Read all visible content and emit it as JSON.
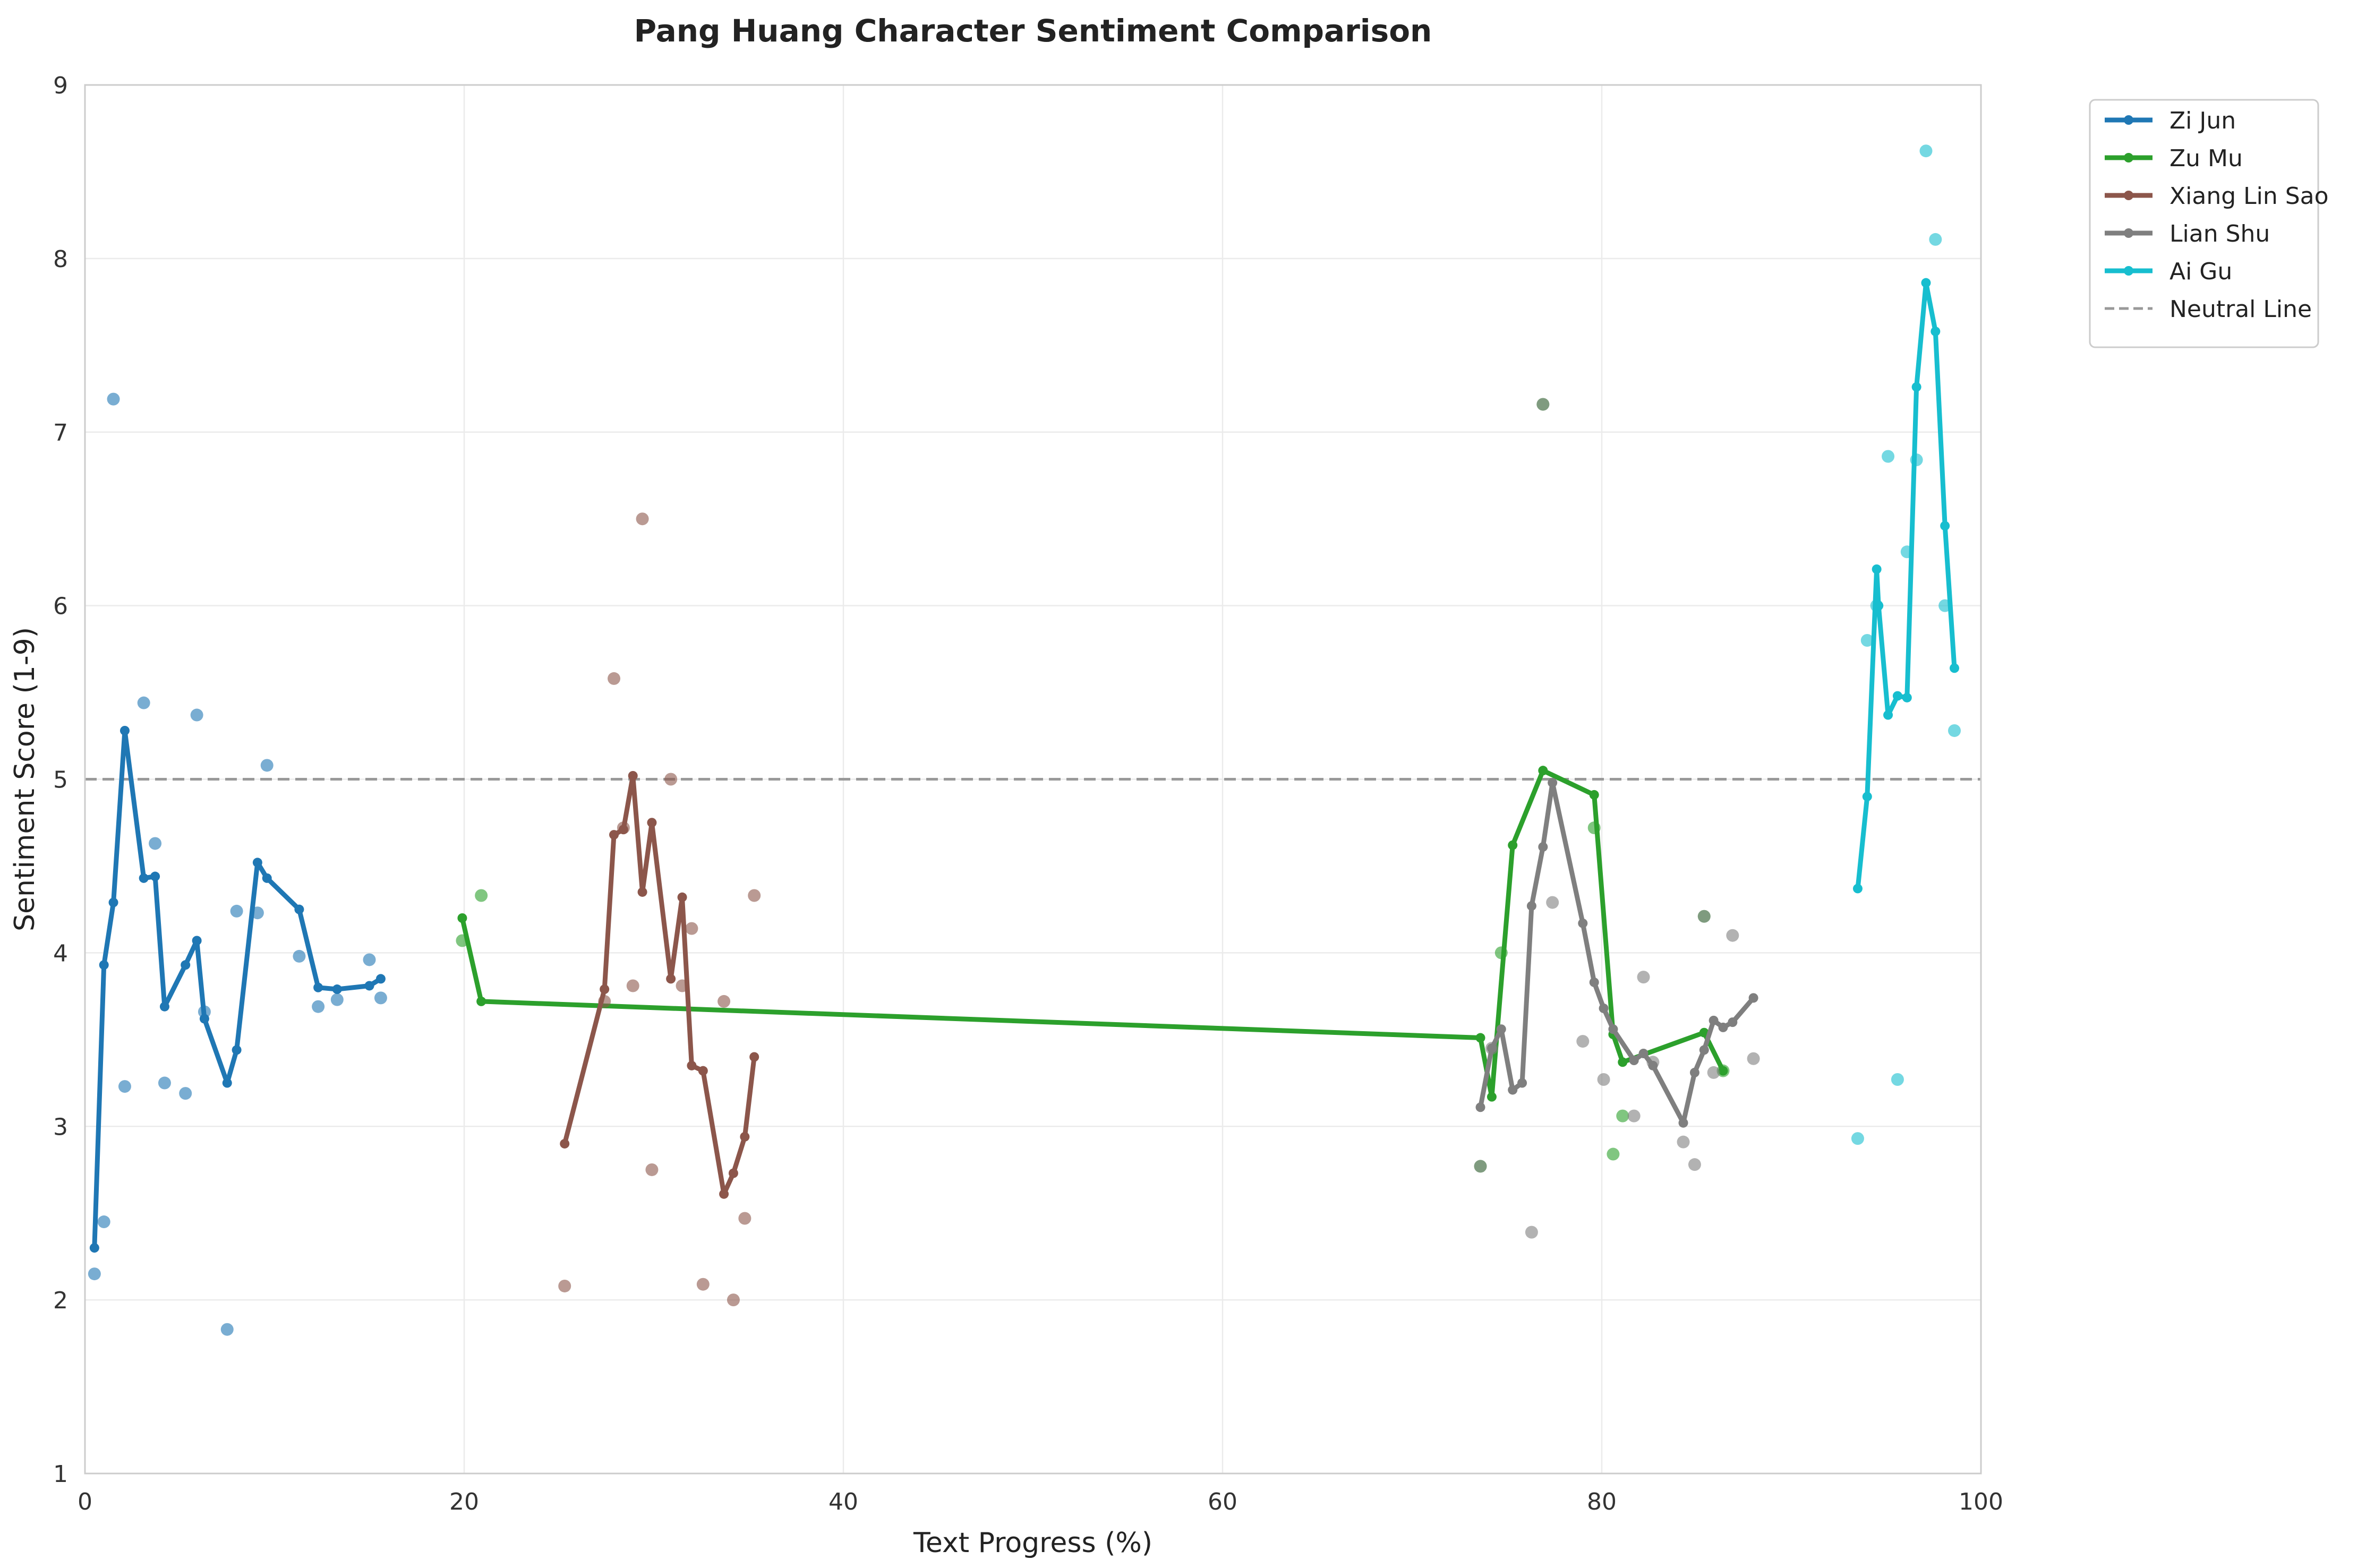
{
  "chart_data": {
    "type": "line",
    "title": "Pang Huang Character Sentiment Comparison",
    "xlabel": "Text Progress (%)",
    "ylabel": "Sentiment Score (1-9)",
    "xlim": [
      0,
      100
    ],
    "ylim": [
      1,
      9
    ],
    "x_ticks": [
      0,
      20,
      40,
      60,
      80,
      100
    ],
    "y_ticks": [
      1,
      2,
      3,
      4,
      5,
      6,
      7,
      8,
      9
    ],
    "grid": true,
    "legend_position": "outside top-right",
    "neutral_line": {
      "label": "Neutral Line",
      "y": 5,
      "color": "#999999",
      "style": "dashed"
    },
    "series": [
      {
        "name": "Zi Jun",
        "color": "#1f77b4",
        "line": [
          [
            0.5,
            2.3
          ],
          [
            1.0,
            3.93
          ],
          [
            1.5,
            4.29
          ],
          [
            2.1,
            5.28
          ],
          [
            3.1,
            4.43
          ],
          [
            3.7,
            4.44
          ],
          [
            4.2,
            3.69
          ],
          [
            5.3,
            3.93
          ],
          [
            5.9,
            4.07
          ],
          [
            6.3,
            3.62
          ],
          [
            7.5,
            3.25
          ],
          [
            8.0,
            3.44
          ],
          [
            9.1,
            4.52
          ],
          [
            9.6,
            4.43
          ],
          [
            11.3,
            4.25
          ],
          [
            12.3,
            3.8
          ],
          [
            13.3,
            3.79
          ],
          [
            15.0,
            3.81
          ],
          [
            15.6,
            3.85
          ]
        ],
        "points": [
          [
            0.5,
            2.15
          ],
          [
            1.0,
            2.45
          ],
          [
            1.5,
            7.19
          ],
          [
            2.1,
            3.23
          ],
          [
            3.1,
            5.44
          ],
          [
            3.7,
            4.63
          ],
          [
            4.2,
            3.25
          ],
          [
            5.3,
            3.19
          ],
          [
            5.9,
            5.37
          ],
          [
            6.3,
            3.66
          ],
          [
            7.5,
            1.83
          ],
          [
            8.0,
            4.24
          ],
          [
            9.1,
            4.23
          ],
          [
            9.6,
            5.08
          ],
          [
            11.3,
            3.98
          ],
          [
            12.3,
            3.69
          ],
          [
            13.3,
            3.73
          ],
          [
            15.0,
            3.96
          ],
          [
            15.6,
            3.74
          ]
        ]
      },
      {
        "name": "Zu Mu",
        "color": "#2ca02c",
        "line": [
          [
            19.9,
            4.2
          ],
          [
            20.9,
            3.72
          ],
          [
            73.6,
            3.51
          ],
          [
            74.2,
            3.17
          ],
          [
            75.3,
            4.62
          ],
          [
            76.9,
            5.05
          ],
          [
            79.6,
            4.91
          ],
          [
            80.6,
            3.53
          ],
          [
            81.1,
            3.37
          ],
          [
            85.4,
            3.54
          ],
          [
            86.4,
            3.32
          ]
        ],
        "points": [
          [
            19.9,
            4.07
          ],
          [
            20.9,
            4.33
          ],
          [
            73.6,
            2.77
          ],
          [
            74.7,
            4.0
          ],
          [
            76.9,
            7.16
          ],
          [
            79.6,
            4.72
          ],
          [
            80.6,
            2.84
          ],
          [
            81.1,
            3.06
          ],
          [
            85.4,
            4.21
          ],
          [
            86.4,
            3.32
          ]
        ]
      },
      {
        "name": "Xiang Lin Sao",
        "color": "#8c564b",
        "line": [
          [
            25.3,
            2.9
          ],
          [
            27.4,
            3.79
          ],
          [
            27.9,
            4.68
          ],
          [
            28.4,
            4.71
          ],
          [
            28.9,
            5.02
          ],
          [
            29.4,
            4.35
          ],
          [
            29.9,
            4.75
          ],
          [
            30.9,
            3.85
          ],
          [
            31.5,
            4.32
          ],
          [
            32.0,
            3.35
          ],
          [
            32.6,
            3.32
          ],
          [
            33.7,
            2.61
          ],
          [
            34.2,
            2.73
          ],
          [
            34.8,
            2.94
          ],
          [
            35.3,
            3.4
          ]
        ],
        "points": [
          [
            25.3,
            2.08
          ],
          [
            27.4,
            3.72
          ],
          [
            27.9,
            5.58
          ],
          [
            28.4,
            4.72
          ],
          [
            28.9,
            3.81
          ],
          [
            29.4,
            6.5
          ],
          [
            29.9,
            2.75
          ],
          [
            30.9,
            5.0
          ],
          [
            31.5,
            3.81
          ],
          [
            32.0,
            4.14
          ],
          [
            32.6,
            2.09
          ],
          [
            33.7,
            3.72
          ],
          [
            34.2,
            2.0
          ],
          [
            34.8,
            2.47
          ],
          [
            35.3,
            4.33
          ]
        ]
      },
      {
        "name": "Lian Shu",
        "color": "#7f7f7f",
        "line": [
          [
            73.6,
            3.11
          ],
          [
            74.2,
            3.45
          ],
          [
            74.7,
            3.56
          ],
          [
            75.3,
            3.21
          ],
          [
            75.8,
            3.25
          ],
          [
            76.3,
            4.27
          ],
          [
            76.9,
            4.61
          ],
          [
            77.4,
            4.98
          ],
          [
            79.0,
            4.17
          ],
          [
            79.6,
            3.83
          ],
          [
            80.1,
            3.68
          ],
          [
            80.6,
            3.56
          ],
          [
            81.7,
            3.38
          ],
          [
            82.2,
            3.42
          ],
          [
            82.7,
            3.35
          ],
          [
            84.3,
            3.02
          ],
          [
            84.9,
            3.31
          ],
          [
            85.4,
            3.44
          ],
          [
            85.9,
            3.61
          ],
          [
            86.4,
            3.57
          ],
          [
            86.9,
            3.6
          ],
          [
            88.0,
            3.74
          ]
        ],
        "points": [
          [
            73.6,
            2.77
          ],
          [
            74.2,
            3.45
          ],
          [
            76.3,
            2.39
          ],
          [
            76.9,
            7.16
          ],
          [
            77.4,
            4.29
          ],
          [
            79.0,
            3.49
          ],
          [
            80.1,
            3.27
          ],
          [
            81.7,
            3.06
          ],
          [
            82.2,
            3.86
          ],
          [
            82.7,
            3.37
          ],
          [
            84.3,
            2.91
          ],
          [
            84.9,
            2.78
          ],
          [
            85.4,
            4.21
          ],
          [
            85.9,
            3.31
          ],
          [
            86.9,
            4.1
          ],
          [
            88.0,
            3.39
          ]
        ]
      },
      {
        "name": "Ai Gu",
        "color": "#17becf",
        "line": [
          [
            93.5,
            4.37
          ],
          [
            94.0,
            4.9
          ],
          [
            94.5,
            6.21
          ],
          [
            94.6,
            6.0
          ],
          [
            95.1,
            5.37
          ],
          [
            95.6,
            5.48
          ],
          [
            96.1,
            5.47
          ],
          [
            96.6,
            7.26
          ],
          [
            97.1,
            7.86
          ],
          [
            97.6,
            7.58
          ],
          [
            98.1,
            6.46
          ],
          [
            98.6,
            5.64
          ]
        ],
        "points": [
          [
            93.5,
            2.93
          ],
          [
            94.0,
            5.8
          ],
          [
            94.5,
            6.0
          ],
          [
            95.1,
            6.86
          ],
          [
            95.6,
            3.27
          ],
          [
            96.1,
            6.31
          ],
          [
            96.6,
            6.84
          ],
          [
            97.1,
            8.62
          ],
          [
            97.6,
            8.11
          ],
          [
            98.1,
            6.0
          ],
          [
            98.6,
            5.28
          ]
        ]
      }
    ]
  }
}
